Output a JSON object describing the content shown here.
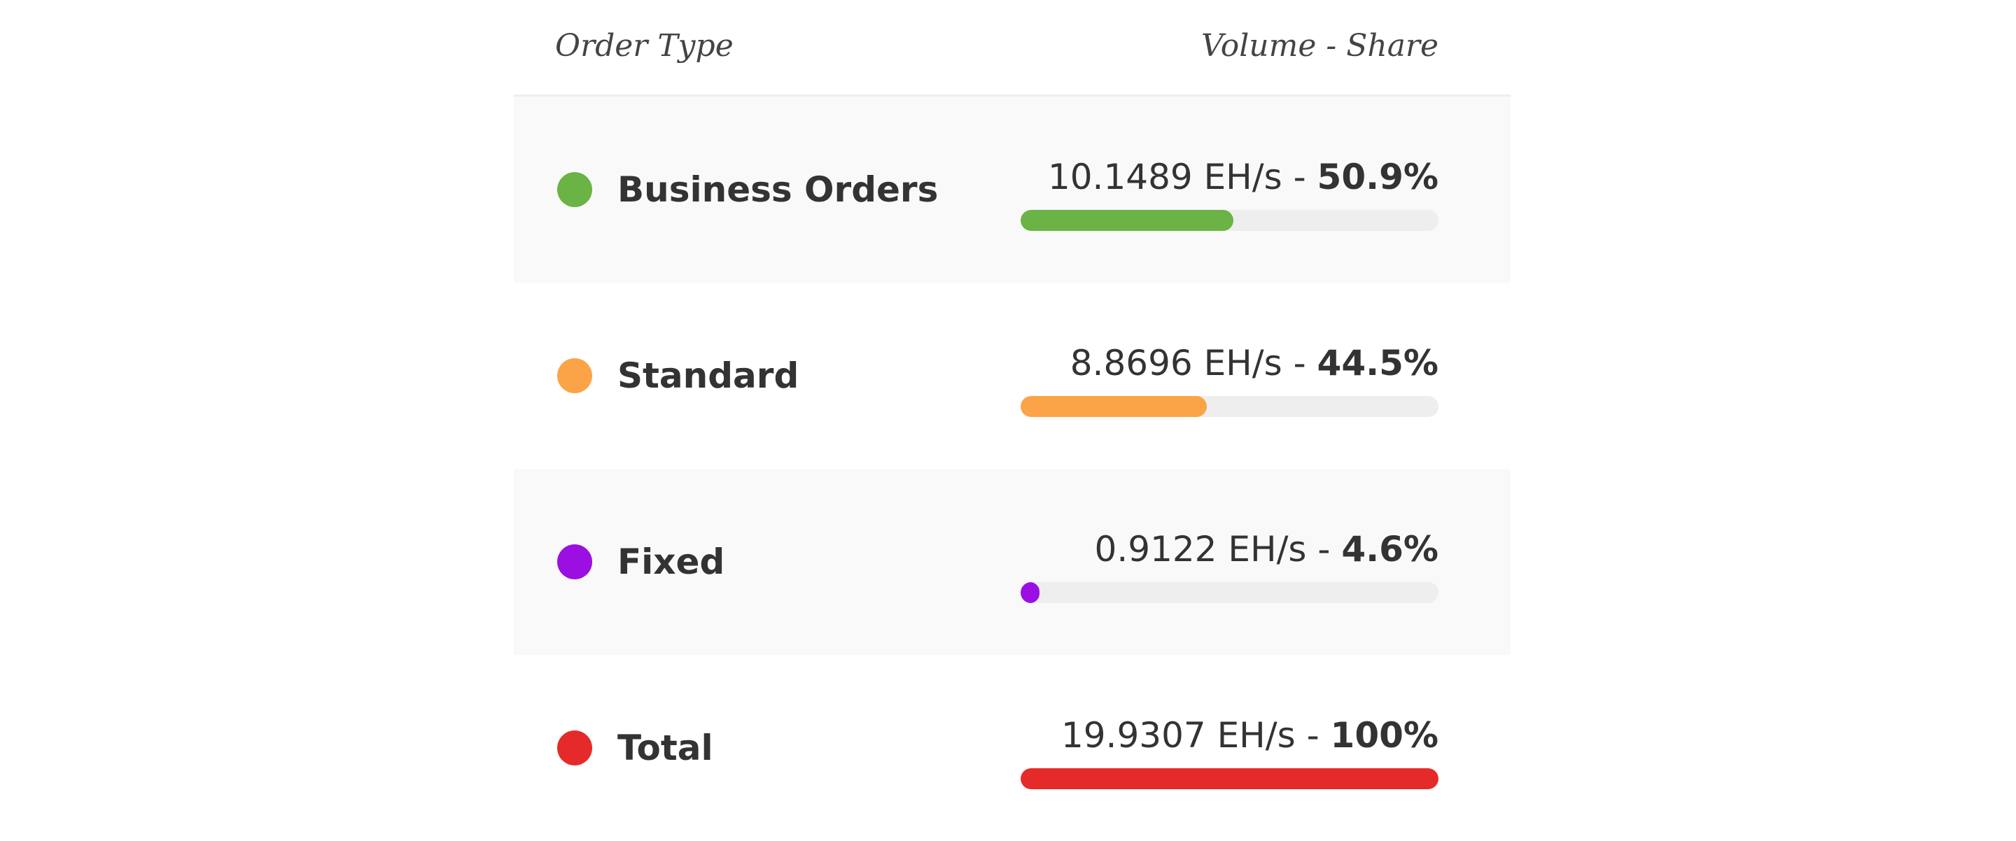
{
  "header": {
    "left_label": "Order Type",
    "right_label": "Volume - Share"
  },
  "rows": [
    {
      "name": "Business Orders",
      "volume": "10.1489 EH/s",
      "separator": " - ",
      "share_label": "50.9%",
      "share": 50.9,
      "color": "#6ab344",
      "shaded": true
    },
    {
      "name": "Standard",
      "volume": "8.8696 EH/s",
      "separator": " - ",
      "share_label": "44.5%",
      "share": 44.5,
      "color": "#fba447",
      "shaded": false
    },
    {
      "name": "Fixed",
      "volume": "0.9122 EH/s",
      "separator": " - ",
      "share_label": "4.6%",
      "share": 4.6,
      "color": "#9b0fe2",
      "shaded": true
    },
    {
      "name": "Total",
      "volume": "19.9307 EH/s",
      "separator": " - ",
      "share_label": "100%",
      "share": 100,
      "color": "#e52b29",
      "shaded": false
    }
  ]
}
